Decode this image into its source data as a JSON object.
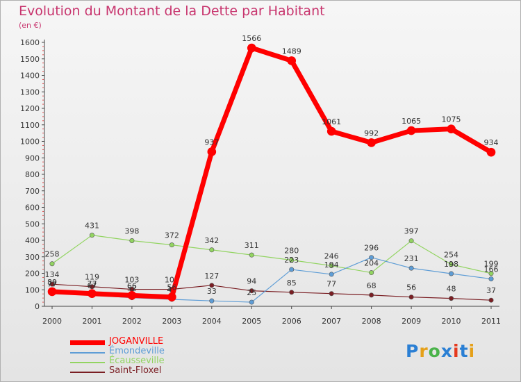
{
  "header": {
    "title": "Evolution du Montant de la Dette par Habitant",
    "subtitle": "(en €)"
  },
  "logo": {
    "text": "Proxiti",
    "colors": [
      "#2a7fd4",
      "#e5a019",
      "#4ab34a",
      "#2a7fd4",
      "#e5391e",
      "#2a7fd4",
      "#e5a019"
    ]
  },
  "chart_data": {
    "type": "line",
    "x": [
      "2000",
      "2001",
      "2002",
      "2003",
      "2004",
      "2005",
      "2006",
      "2007",
      "2008",
      "2009",
      "2010",
      "2011"
    ],
    "ylim": [
      0,
      1600
    ],
    "yticks": [
      0,
      100,
      200,
      300,
      400,
      500,
      600,
      700,
      800,
      900,
      1000,
      1100,
      1200,
      1300,
      1400,
      1500,
      1600
    ],
    "grid": false,
    "legend_position": "bottom-left",
    "series": [
      {
        "name": "Saint-Floxel",
        "color": "#7a1e23",
        "width": 1.2,
        "values": [
          134,
          119,
          103,
          103,
          127,
          94,
          85,
          77,
          68,
          56,
          48,
          37
        ]
      },
      {
        "name": "Écausseville",
        "color": "#92d461",
        "width": 1.2,
        "values": [
          258,
          431,
          398,
          372,
          342,
          311,
          280,
          246,
          204,
          397,
          254,
          199
        ]
      },
      {
        "name": "Émondeville",
        "color": "#5e9dd6",
        "width": 1.2,
        "values": [
          77,
          67,
          52,
          42,
          33,
          25,
          223,
          194,
          296,
          231,
          198,
          166
        ]
      },
      {
        "name": "JOGANVILLE",
        "color": "#ff0000",
        "width": 7,
        "values": [
          89,
          77,
          66,
          56,
          937,
          1566,
          1489,
          1061,
          992,
          1065,
          1075,
          934
        ]
      }
    ],
    "legend_order": [
      "JOGANVILLE",
      "Émondeville",
      "Écausseville",
      "Saint-Floxel"
    ]
  }
}
